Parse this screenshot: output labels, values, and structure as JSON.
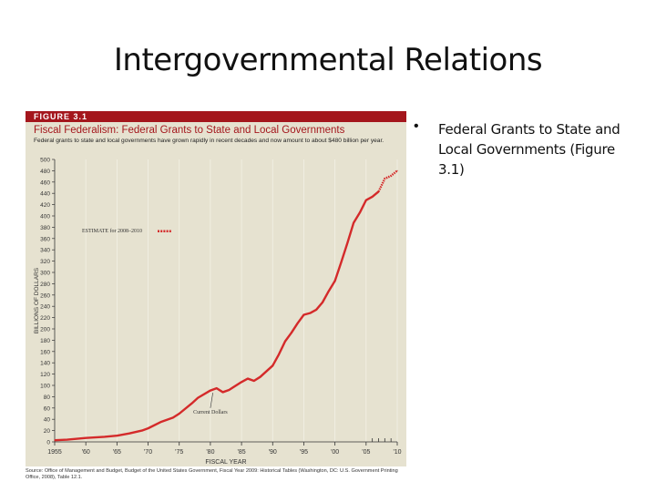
{
  "slide": {
    "title": "Intergovernmental Relations",
    "bullet_marker": "•",
    "bullet_text": "Federal Grants to State and Local Governments (Figure 3.1)"
  },
  "figure": {
    "label": "FIGURE 3.1",
    "title": "Fiscal Federalism: Federal Grants to State and Local Governments",
    "subtitle": "Federal grants to state and local governments have grown rapidly in recent decades and now amount to about $480 billion per year.",
    "source": "Source: Office of Management and Budget, Budget of the United States Government, Fiscal Year 2009: Historical Tables (Washington, DC: U.S. Government Printing Office, 2008), Table 12.1.",
    "colors": {
      "accent": "#a4161c",
      "line": "#d42a2a",
      "background": "#e6e2d0"
    }
  },
  "chart_data": {
    "type": "line",
    "title": "Fiscal Federalism: Federal Grants to State and Local Governments",
    "xlabel": "FISCAL YEAR",
    "ylabel": "BILLIONS OF DOLLARS",
    "xlim": [
      1955,
      2010
    ],
    "ylim": [
      0,
      500
    ],
    "x_ticks": [
      1955,
      1960,
      1965,
      1970,
      1975,
      1980,
      1985,
      1990,
      1995,
      2000,
      2005,
      2010
    ],
    "x_tick_labels": [
      "1955",
      "'60",
      "'65",
      "'70",
      "'75",
      "'80",
      "'85",
      "'90",
      "'95",
      "'00",
      "'05",
      "'10"
    ],
    "y_ticks": [
      0,
      20,
      40,
      60,
      80,
      100,
      120,
      140,
      160,
      180,
      200,
      220,
      240,
      260,
      280,
      300,
      320,
      340,
      360,
      380,
      400,
      420,
      440,
      460,
      480,
      500
    ],
    "annotation": "Current Dollars",
    "legend_estimate": "ESTIMATE for 2008–2010",
    "series": [
      {
        "name": "Current Dollars",
        "x": [
          1955,
          1957,
          1960,
          1963,
          1965,
          1967,
          1969,
          1970,
          1972,
          1974,
          1975,
          1977,
          1978,
          1980,
          1981,
          1982,
          1983,
          1985,
          1986,
          1987,
          1988,
          1990,
          1991,
          1992,
          1993,
          1994,
          1995,
          1996,
          1997,
          1998,
          1999,
          2000,
          2001,
          2002,
          2003,
          2004,
          2005,
          2006,
          2007
        ],
        "values": [
          3,
          4,
          7,
          9,
          11,
          15,
          20,
          24,
          35,
          43,
          50,
          68,
          78,
          91,
          95,
          88,
          92,
          106,
          112,
          108,
          115,
          135,
          155,
          178,
          193,
          210,
          225,
          228,
          234,
          247,
          267,
          285,
          318,
          352,
          388,
          406,
          428,
          434,
          443
        ]
      },
      {
        "name": "Estimate",
        "x": [
          2007,
          2008,
          2009,
          2010
        ],
        "values": [
          443,
          466,
          471,
          480
        ]
      }
    ]
  }
}
